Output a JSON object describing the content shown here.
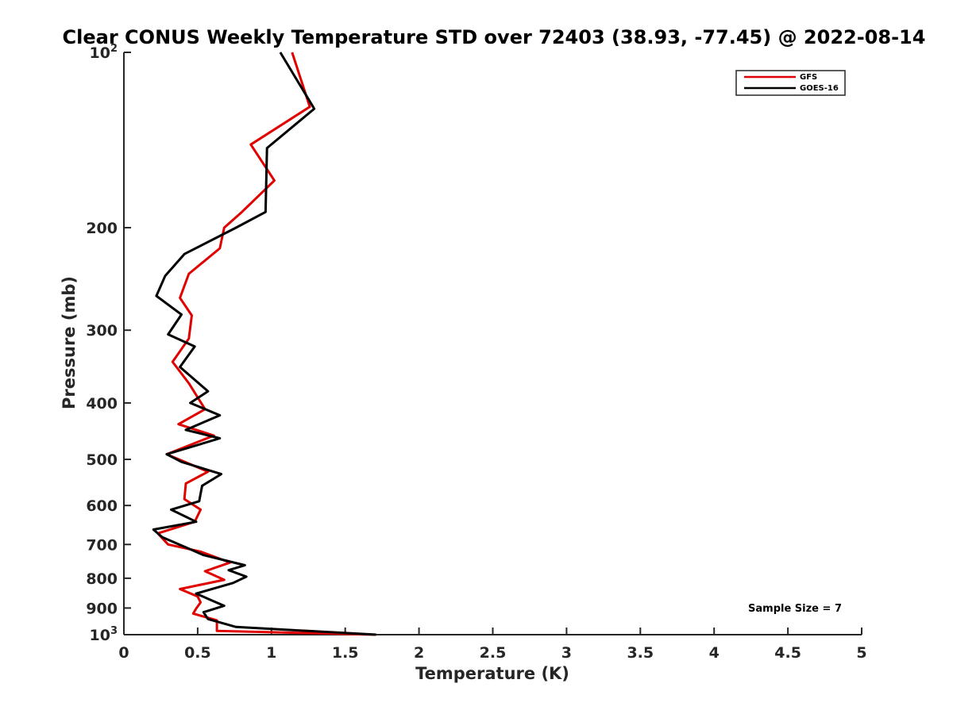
{
  "chart_data": {
    "type": "line",
    "title": "Clear CONUS Weekly Temperature STD over 72403 (38.93, -77.45) @ 2022-08-14",
    "xlabel": "Temperature (K)",
    "ylabel": "Pressure (mb)",
    "xlim": [
      0,
      5
    ],
    "ylim": [
      100,
      1000
    ],
    "y_scale": "log",
    "y_reversed": true,
    "grid": false,
    "legend_position": "top-right",
    "x_ticks": [
      0,
      0.5,
      1,
      1.5,
      2,
      2.5,
      3,
      3.5,
      4,
      4.5,
      5
    ],
    "x_tick_labels": [
      "0",
      "0.5",
      "1",
      "1.5",
      "2",
      "2.5",
      "3",
      "3.5",
      "4",
      "4.5",
      "5"
    ],
    "y_ticks": [
      {
        "value": 100,
        "base": "10",
        "exp": "2"
      },
      {
        "value": 200,
        "label": "200"
      },
      {
        "value": 300,
        "label": "300"
      },
      {
        "value": 400,
        "label": "400"
      },
      {
        "value": 500,
        "label": "500"
      },
      {
        "value": 600,
        "label": "600"
      },
      {
        "value": 700,
        "label": "700"
      },
      {
        "value": 800,
        "label": "800"
      },
      {
        "value": 900,
        "label": "900"
      },
      {
        "value": 1000,
        "base": "10",
        "exp": "3"
      }
    ],
    "series": [
      {
        "name": "GFS",
        "color": "#e00000",
        "points": [
          [
            1.14,
            100
          ],
          [
            1.26,
            124
          ],
          [
            0.86,
            144
          ],
          [
            1.02,
            166
          ],
          [
            0.8,
            188
          ],
          [
            0.68,
            200
          ],
          [
            0.65,
            217
          ],
          [
            0.44,
            240
          ],
          [
            0.38,
            264
          ],
          [
            0.46,
            283
          ],
          [
            0.44,
            310
          ],
          [
            0.33,
            340
          ],
          [
            0.44,
            370
          ],
          [
            0.55,
            410
          ],
          [
            0.37,
            435
          ],
          [
            0.61,
            455
          ],
          [
            0.29,
            490
          ],
          [
            0.57,
            525
          ],
          [
            0.42,
            550
          ],
          [
            0.41,
            585
          ],
          [
            0.52,
            610
          ],
          [
            0.48,
            640
          ],
          [
            0.23,
            670
          ],
          [
            0.3,
            700
          ],
          [
            0.52,
            720
          ],
          [
            0.72,
            752
          ],
          [
            0.55,
            778
          ],
          [
            0.68,
            805
          ],
          [
            0.38,
            835
          ],
          [
            0.5,
            860
          ],
          [
            0.52,
            880
          ],
          [
            0.49,
            902
          ],
          [
            0.47,
            920
          ],
          [
            0.63,
            945
          ],
          [
            0.63,
            985
          ],
          [
            1.7,
            1000
          ]
        ]
      },
      {
        "name": "GOES-16",
        "color": "#000000",
        "points": [
          [
            1.06,
            100
          ],
          [
            1.29,
            125
          ],
          [
            0.97,
            146
          ],
          [
            0.96,
            188
          ],
          [
            0.76,
            200
          ],
          [
            0.41,
            222
          ],
          [
            0.28,
            242
          ],
          [
            0.22,
            262
          ],
          [
            0.39,
            282
          ],
          [
            0.3,
            305
          ],
          [
            0.48,
            320
          ],
          [
            0.38,
            347
          ],
          [
            0.57,
            382
          ],
          [
            0.45,
            400
          ],
          [
            0.65,
            420
          ],
          [
            0.42,
            445
          ],
          [
            0.65,
            460
          ],
          [
            0.29,
            490
          ],
          [
            0.39,
            505
          ],
          [
            0.66,
            530
          ],
          [
            0.53,
            555
          ],
          [
            0.51,
            590
          ],
          [
            0.32,
            610
          ],
          [
            0.49,
            640
          ],
          [
            0.2,
            660
          ],
          [
            0.26,
            680
          ],
          [
            0.43,
            710
          ],
          [
            0.54,
            730
          ],
          [
            0.82,
            760
          ],
          [
            0.71,
            775
          ],
          [
            0.83,
            795
          ],
          [
            0.74,
            815
          ],
          [
            0.49,
            850
          ],
          [
            0.58,
            870
          ],
          [
            0.68,
            892
          ],
          [
            0.54,
            915
          ],
          [
            0.57,
            940
          ],
          [
            0.76,
            970
          ],
          [
            1.71,
            1000
          ]
        ]
      }
    ],
    "annotation": "Sample Size = 7"
  }
}
